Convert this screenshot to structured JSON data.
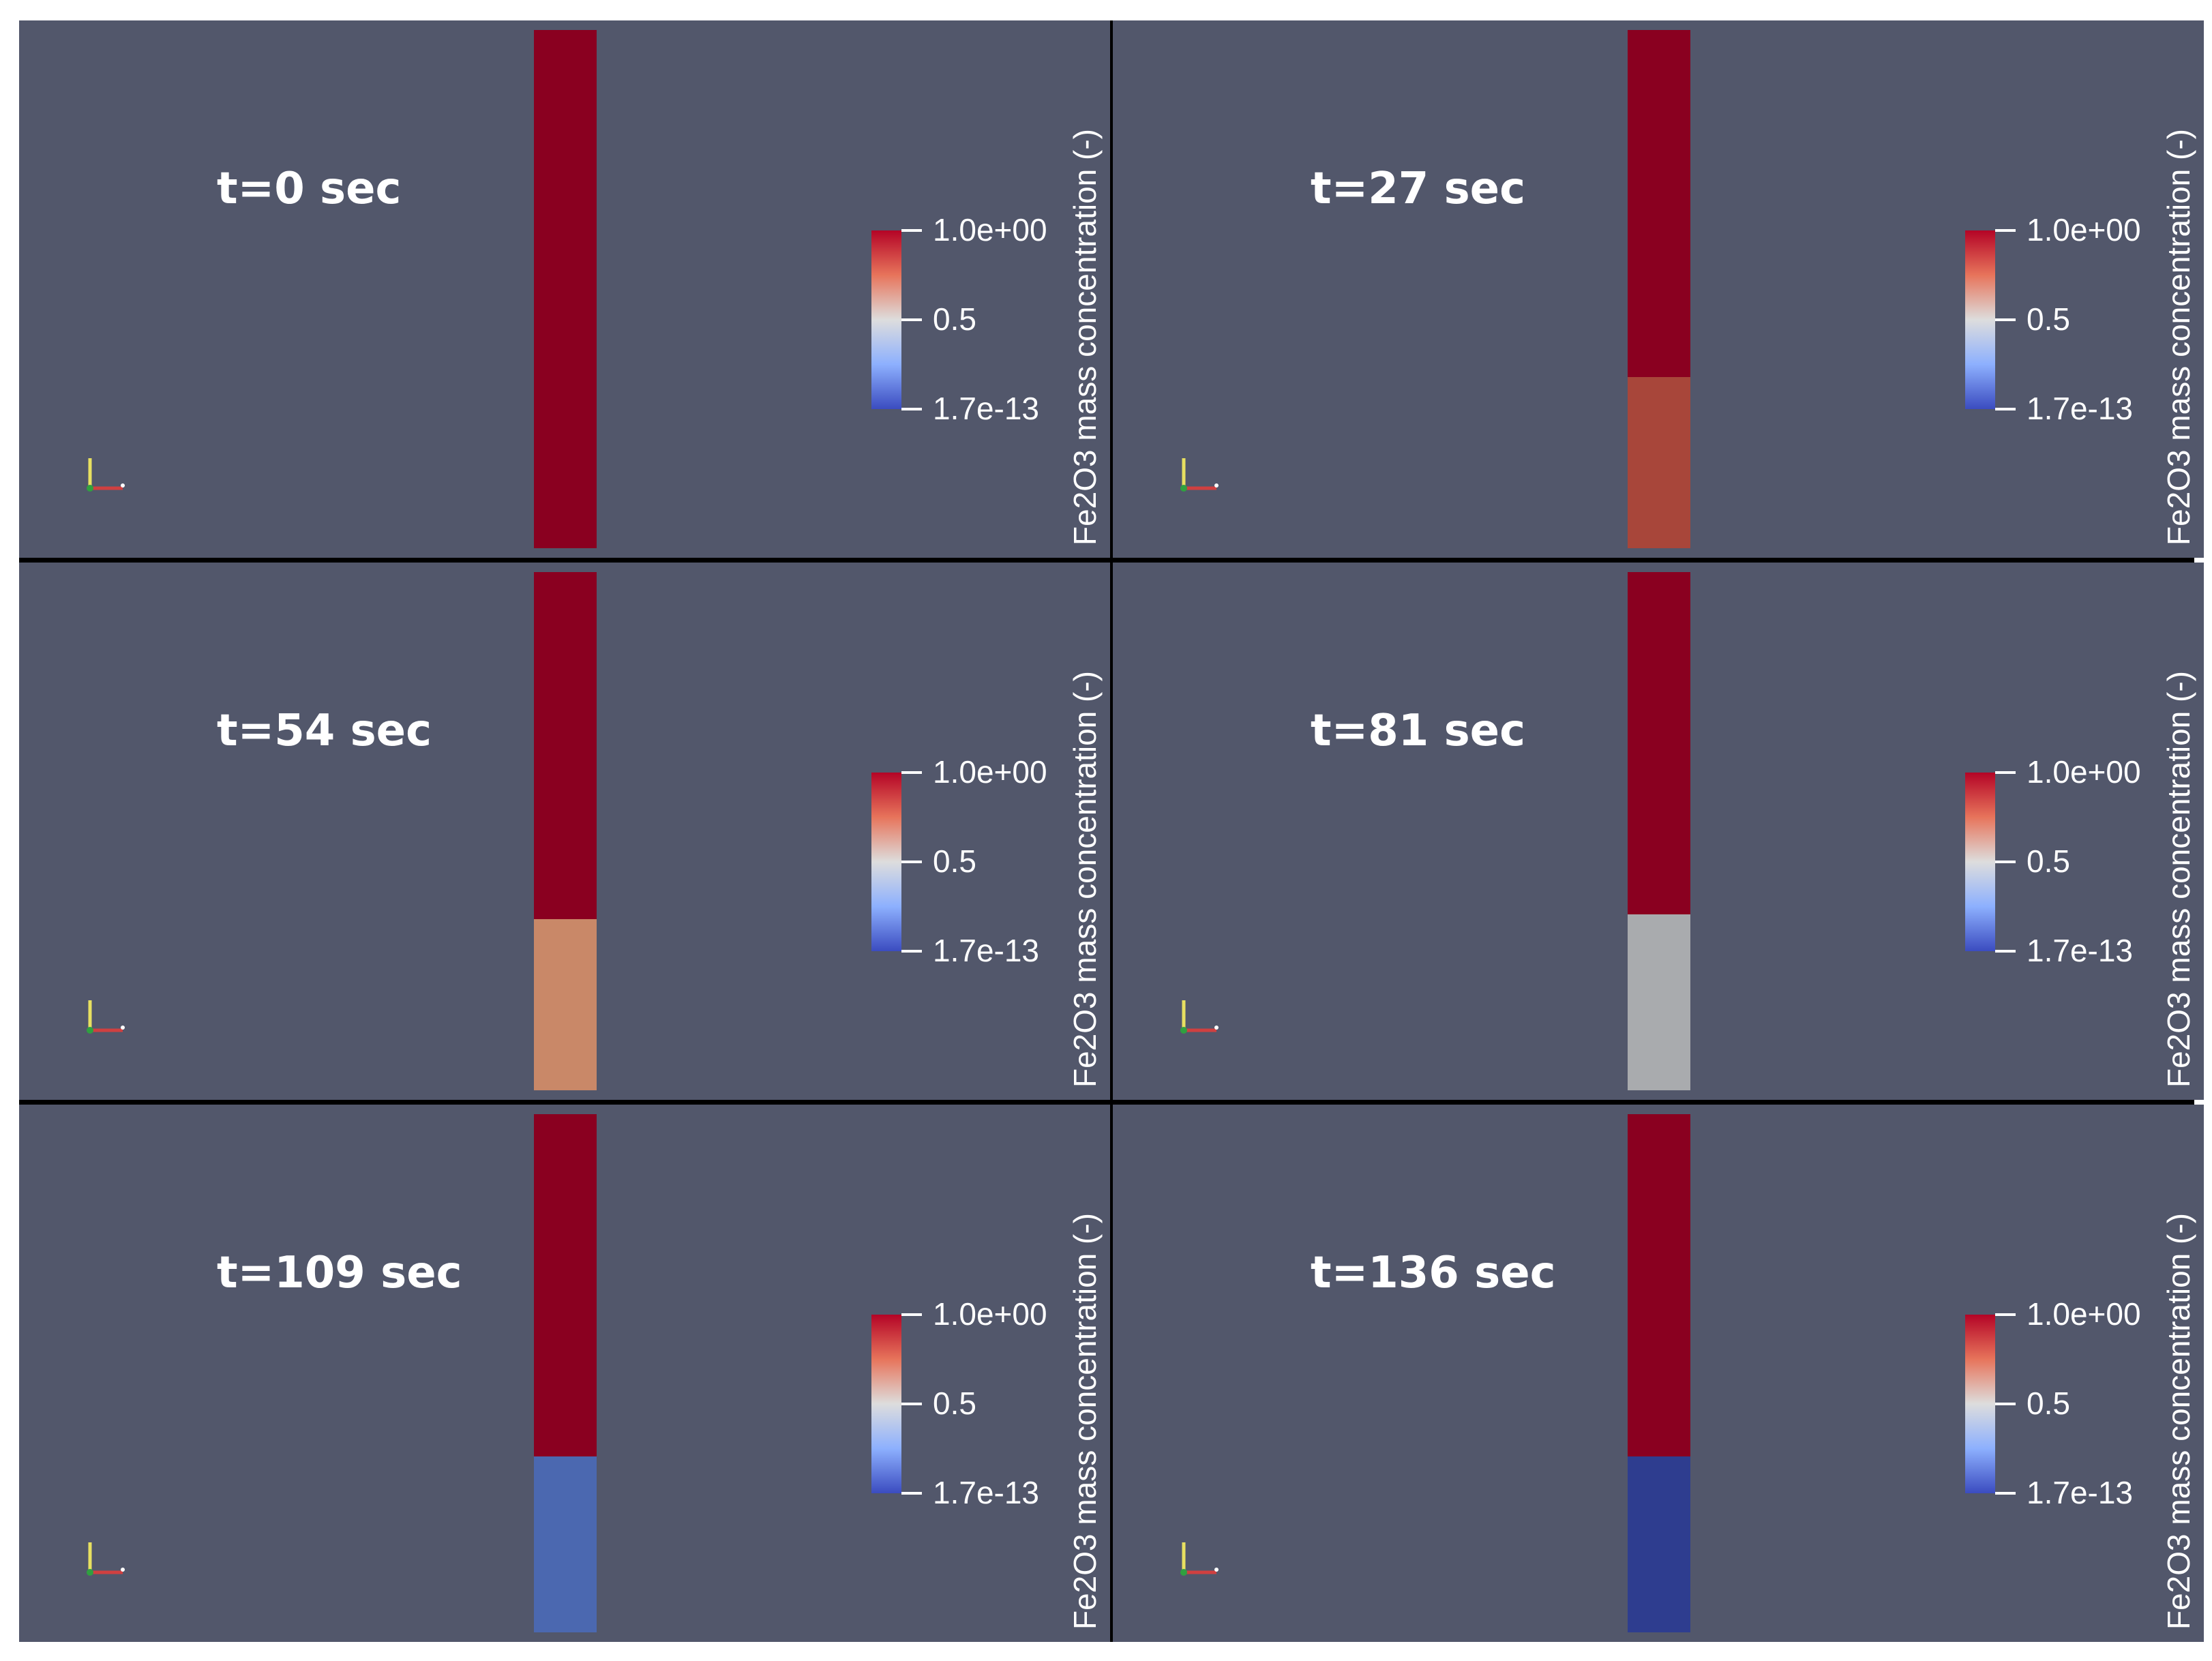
{
  "colorbar": {
    "title": "Fe2O3 mass concentration (-)",
    "max_label": "1.0e+00",
    "mid_label": "0.5",
    "min_label": "1.7e-13"
  },
  "panels": [
    {
      "time": "t=0 sec",
      "interface_fraction": 0.0,
      "bottom_color": "#8a0020"
    },
    {
      "time": "t=27 sec",
      "interface_fraction": 0.33,
      "bottom_color": "#a8463a"
    },
    {
      "time": "t=54 sec",
      "interface_fraction": 0.33,
      "bottom_color": "#c98868"
    },
    {
      "time": "t=81 sec",
      "interface_fraction": 0.34,
      "bottom_color": "#a9abae"
    },
    {
      "time": "t=109 sec",
      "interface_fraction": 0.34,
      "bottom_color": "#4b68b0"
    },
    {
      "time": "t=136 sec",
      "interface_fraction": 0.34,
      "bottom_color": "#2e3d8f"
    }
  ],
  "colors": {
    "background": "#52576b",
    "high": "#8a0020"
  }
}
